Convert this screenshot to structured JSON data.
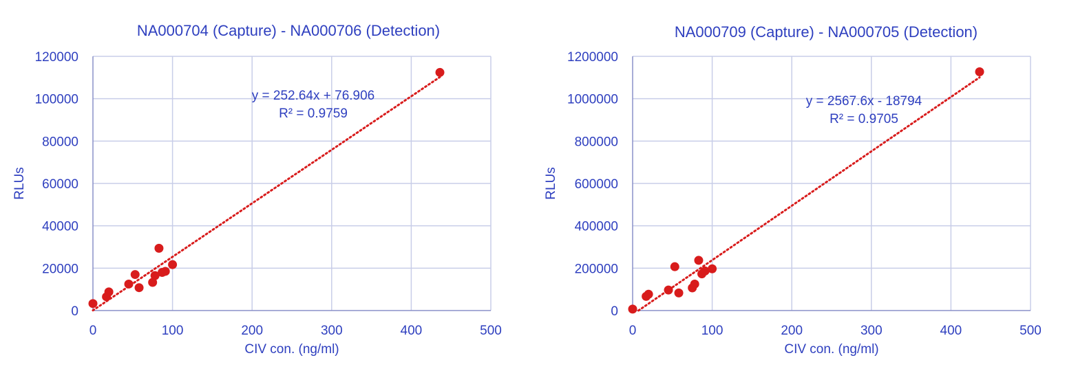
{
  "chart_data": [
    {
      "type": "scatter",
      "title": "NA000704 (Capture) - NA000706 (Detection)",
      "xlabel": "CIV con. (ng/ml)",
      "ylabel": "RLUs",
      "xlim": [
        0,
        500
      ],
      "ylim": [
        0,
        120000
      ],
      "xticks": [
        0,
        100,
        200,
        300,
        400,
        500
      ],
      "yticks": [
        0,
        20000,
        40000,
        60000,
        80000,
        100000,
        120000
      ],
      "grid": true,
      "legend": "none",
      "points": [
        {
          "x": 0,
          "y": 3300
        },
        {
          "x": 17,
          "y": 6500
        },
        {
          "x": 20,
          "y": 8800
        },
        {
          "x": 45,
          "y": 12500
        },
        {
          "x": 53,
          "y": 17000
        },
        {
          "x": 58,
          "y": 10800
        },
        {
          "x": 75,
          "y": 13300
        },
        {
          "x": 78,
          "y": 16500
        },
        {
          "x": 83,
          "y": 29400
        },
        {
          "x": 87,
          "y": 18000
        },
        {
          "x": 91,
          "y": 18500
        },
        {
          "x": 100,
          "y": 21700
        },
        {
          "x": 436,
          "y": 112400
        }
      ],
      "trendline": {
        "slope": 252.64,
        "intercept": 76.906,
        "style": "dotted"
      },
      "annotation": {
        "equation": "y = 252.64x + 76.906",
        "r2": "R² = 0.9759"
      },
      "colors": {
        "title": "#2e3fbf",
        "axis_text": "#2e3fbf",
        "grid": "#c8cde8",
        "axis": "#8a90c8",
        "point": "#d81c1c",
        "trend": "#d81c1c",
        "annotation": "#2e3fbf"
      }
    },
    {
      "type": "scatter",
      "title": "NA000709 (Capture) - NA000705 (Detection)",
      "xlabel": "CIV con. (ng/ml)",
      "ylabel": "RLUs",
      "xlim": [
        0,
        500
      ],
      "ylim": [
        0,
        1200000
      ],
      "xticks": [
        0,
        100,
        200,
        300,
        400,
        500
      ],
      "yticks": [
        0,
        200000,
        400000,
        600000,
        800000,
        1000000,
        1200000
      ],
      "grid": true,
      "legend": "none",
      "points": [
        {
          "x": 0,
          "y": 7000
        },
        {
          "x": 17,
          "y": 67000
        },
        {
          "x": 20,
          "y": 77000
        },
        {
          "x": 45,
          "y": 97000
        },
        {
          "x": 53,
          "y": 207000
        },
        {
          "x": 58,
          "y": 83000
        },
        {
          "x": 75,
          "y": 107000
        },
        {
          "x": 78,
          "y": 125000
        },
        {
          "x": 83,
          "y": 237000
        },
        {
          "x": 87,
          "y": 173000
        },
        {
          "x": 91,
          "y": 187000
        },
        {
          "x": 100,
          "y": 197000
        },
        {
          "x": 436,
          "y": 1127000
        }
      ],
      "trendline": {
        "slope": 2567.6,
        "intercept": -18794,
        "style": "dotted"
      },
      "annotation": {
        "equation": "y = 2567.6x - 18794",
        "r2": "R² = 0.9705"
      },
      "colors": {
        "title": "#2e3fbf",
        "axis_text": "#2e3fbf",
        "grid": "#c8cde8",
        "axis": "#8a90c8",
        "point": "#d81c1c",
        "trend": "#d81c1c",
        "annotation": "#2e3fbf"
      }
    }
  ]
}
